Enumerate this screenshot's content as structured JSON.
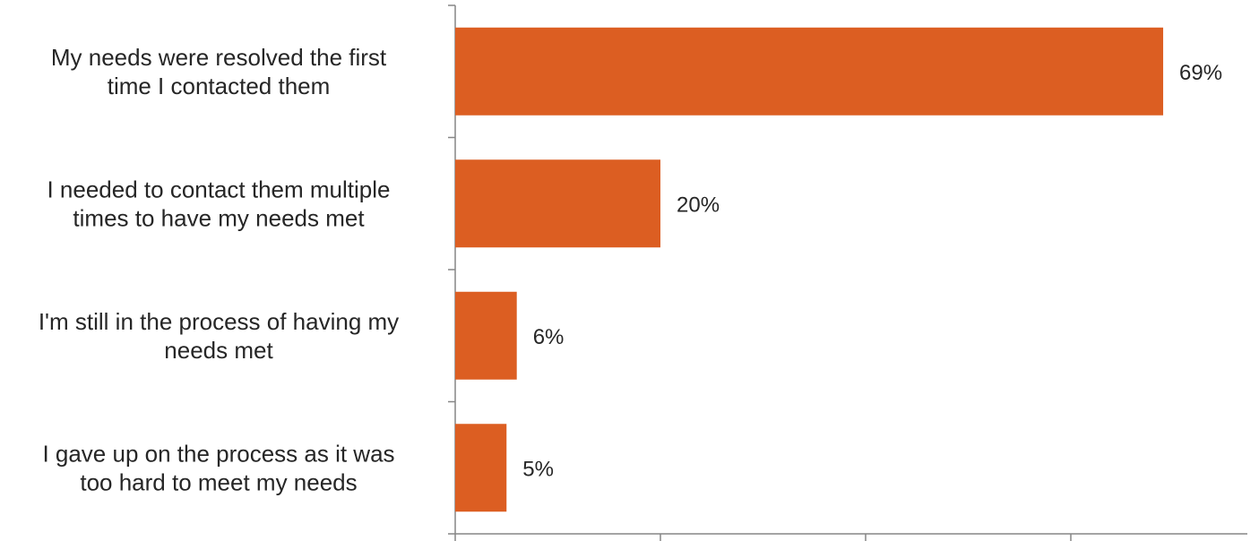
{
  "chart_data": {
    "type": "bar",
    "orientation": "horizontal",
    "categories": [
      "My needs were resolved the first time I contacted them",
      "I needed to contact them multiple times to have my needs met",
      "I'm still in the process of having my needs met",
      "I gave up on the process as it was too hard to meet my needs"
    ],
    "category_lines": [
      [
        "My needs were resolved the first",
        "time I contacted them"
      ],
      [
        "I needed to contact them multiple",
        "times to have my needs met"
      ],
      [
        "I'm still in the process of having my",
        "needs met"
      ],
      [
        "I gave up on the process as it was",
        "too hard to meet my needs"
      ]
    ],
    "values": [
      69,
      20,
      6,
      5
    ],
    "value_labels": [
      "69%",
      "20%",
      "6%",
      "5%"
    ],
    "xlim": [
      0,
      79
    ],
    "x_ticks": [
      0,
      20,
      40,
      60,
      80
    ],
    "grid": false,
    "bar_color": "#DC5E22",
    "title": "",
    "xlabel": "",
    "ylabel": ""
  }
}
